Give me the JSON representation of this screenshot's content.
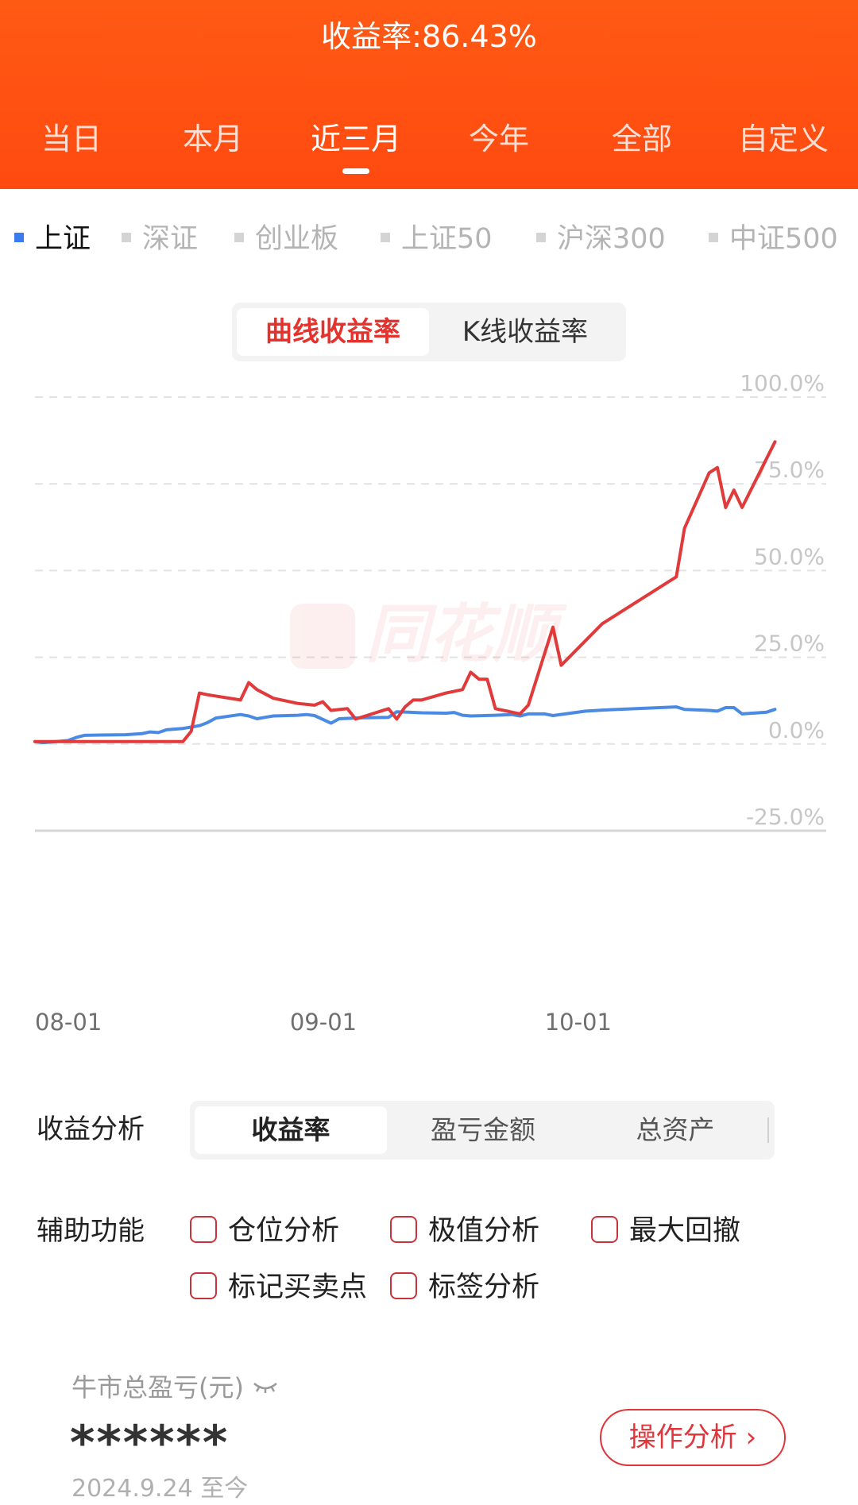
{
  "header": {
    "title_label": "收益率:",
    "title_value": "86.43%",
    "periods": [
      "当日",
      "本月",
      "近三月",
      "今年",
      "全部",
      "自定义"
    ],
    "active_period_index": 2
  },
  "indices": {
    "items": [
      "上证",
      "深证",
      "创业板",
      "上证50",
      "沪深300",
      "中证500"
    ],
    "active_index": 0
  },
  "chart_mode": {
    "options": [
      "曲线收益率",
      "K线收益率"
    ],
    "active_index": 0
  },
  "watermark": {
    "text": "同花顺"
  },
  "colors": {
    "header_bg": "#ff4a10",
    "portfolio_line": "#e03a3a",
    "index_line": "#4a8ae2",
    "checkbox_border": "#c8323a"
  },
  "chart_data": {
    "type": "line",
    "y_tick_labels": [
      "100.0%",
      "75.0%",
      "50.0%",
      "25.0%",
      "0.0%",
      "-25.0%"
    ],
    "y_ticks": [
      100,
      75,
      50,
      25,
      0,
      -25
    ],
    "ylim": [
      -25,
      100
    ],
    "x_tick_labels": [
      "08-01",
      "09-01",
      "10-01"
    ],
    "x_ticks": [
      "08-01",
      "09-01",
      "10-01"
    ],
    "grid": true,
    "series": [
      {
        "color": "#e03a3a",
        "points": [
          [
            "08-01",
            0.0
          ],
          [
            "08-05",
            0.0
          ],
          [
            "08-10",
            0.0
          ],
          [
            "08-15",
            0.0
          ],
          [
            "08-19",
            0.0
          ],
          [
            "08-20",
            3.0
          ],
          [
            "08-21",
            14.0
          ],
          [
            "08-22",
            13.5
          ],
          [
            "08-26",
            12.0
          ],
          [
            "08-27",
            17.0
          ],
          [
            "08-28",
            15.0
          ],
          [
            "08-30",
            12.5
          ],
          [
            "09-02",
            11.0
          ],
          [
            "09-04",
            10.5
          ],
          [
            "09-05",
            11.5
          ],
          [
            "09-06",
            9.0
          ],
          [
            "09-08",
            9.5
          ],
          [
            "09-09",
            6.5
          ],
          [
            "09-13",
            9.5
          ],
          [
            "09-14",
            6.5
          ],
          [
            "09-15",
            10.0
          ],
          [
            "09-16",
            12.0
          ],
          [
            "09-17",
            12.0
          ],
          [
            "09-20",
            14.0
          ],
          [
            "09-22",
            15.0
          ],
          [
            "09-23",
            20.0
          ],
          [
            "09-24",
            18.0
          ],
          [
            "09-25",
            18.0
          ],
          [
            "09-26",
            9.5
          ],
          [
            "09-29",
            8.0
          ],
          [
            "09-30",
            10.5
          ],
          [
            "10-02",
            33.0
          ],
          [
            "10-03",
            22.0
          ],
          [
            "10-08",
            34.0
          ],
          [
            "10-17",
            47.5
          ],
          [
            "10-18",
            61.5
          ],
          [
            "10-21",
            77.5
          ],
          [
            "10-22",
            79.0
          ],
          [
            "10-23",
            67.5
          ],
          [
            "10-24",
            72.5
          ],
          [
            "10-25",
            67.5
          ],
          [
            "10-29",
            86.43
          ]
        ]
      },
      {
        "color": "#4a8ae2",
        "points": [
          [
            "08-01",
            0.0
          ],
          [
            "08-02",
            -0.3
          ],
          [
            "08-05",
            0.3
          ],
          [
            "08-06",
            1.2
          ],
          [
            "08-07",
            1.8
          ],
          [
            "08-09",
            1.9
          ],
          [
            "08-12",
            2.0
          ],
          [
            "08-14",
            2.3
          ],
          [
            "08-15",
            2.8
          ],
          [
            "08-16",
            2.6
          ],
          [
            "08-17",
            3.4
          ],
          [
            "08-19",
            3.8
          ],
          [
            "08-20",
            4.2
          ],
          [
            "08-21",
            4.6
          ],
          [
            "08-22",
            5.5
          ],
          [
            "08-23",
            6.8
          ],
          [
            "08-26",
            7.8
          ],
          [
            "08-27",
            7.4
          ],
          [
            "08-28",
            6.6
          ],
          [
            "08-29",
            7.0
          ],
          [
            "08-30",
            7.4
          ],
          [
            "09-02",
            7.6
          ],
          [
            "09-03",
            7.8
          ],
          [
            "09-04",
            7.5
          ],
          [
            "09-06",
            5.3
          ],
          [
            "09-07",
            6.6
          ],
          [
            "09-09",
            6.8
          ],
          [
            "09-10",
            6.9
          ],
          [
            "09-13",
            7.0
          ],
          [
            "09-14",
            8.6
          ],
          [
            "09-17",
            8.3
          ],
          [
            "09-20",
            8.2
          ],
          [
            "09-21",
            8.4
          ],
          [
            "09-22",
            7.6
          ],
          [
            "09-23",
            7.4
          ],
          [
            "09-26",
            7.6
          ],
          [
            "09-28",
            7.8
          ],
          [
            "09-29",
            7.4
          ],
          [
            "09-30",
            8.0
          ],
          [
            "10-01",
            8.0
          ],
          [
            "10-02",
            7.5
          ],
          [
            "10-06",
            8.8
          ],
          [
            "10-09",
            9.2
          ],
          [
            "10-17",
            10.0
          ],
          [
            "10-18",
            9.3
          ],
          [
            "10-21",
            9.0
          ],
          [
            "10-22",
            8.8
          ],
          [
            "10-23",
            9.8
          ],
          [
            "10-24",
            9.8
          ],
          [
            "10-25",
            8.0
          ],
          [
            "10-28",
            8.5
          ],
          [
            "10-29",
            9.3
          ]
        ]
      }
    ]
  },
  "analysis": {
    "label": "收益分析",
    "options": [
      "收益率",
      "盈亏金额",
      "总资产"
    ],
    "active_index": 0
  },
  "aux": {
    "label": "辅助功能",
    "options": [
      "仓位分析",
      "极值分析",
      "最大回撤",
      "标记买卖点",
      "标签分析"
    ]
  },
  "bottom": {
    "pnl_label": "牛市总盈亏(元)",
    "pnl_value": "******",
    "date_text": "2024.9.24 至今",
    "op_button": "操作分析",
    "op_chevron": "›"
  }
}
